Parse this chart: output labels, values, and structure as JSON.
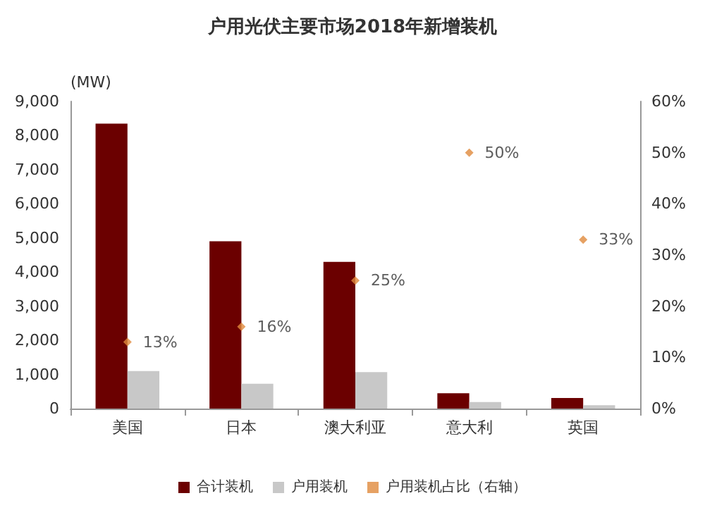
{
  "chart_data": {
    "type": "bar",
    "title": "户用光伏主要市场2018年新增装机",
    "ylabel": "(MW)",
    "categories": [
      "美国",
      "日本",
      "澳大利亚",
      "意大利",
      "英国"
    ],
    "series": [
      {
        "name": "合计装机",
        "color": "#6b0000",
        "values": [
          8350,
          4900,
          4300,
          450,
          310
        ]
      },
      {
        "name": "户用装机",
        "color": "#c8c8c8",
        "values": [
          1100,
          730,
          1070,
          190,
          100
        ]
      },
      {
        "name": "户用装机占比（右轴）",
        "type": "scatter",
        "axis": "y2",
        "color": "#e08a3c",
        "values": [
          13,
          16,
          25,
          50,
          33
        ],
        "value_labels": [
          "13%",
          "16%",
          "25%",
          "50%",
          "33%"
        ]
      }
    ],
    "marker": "diamond",
    "grid": false,
    "legend": "bottom",
    "ylim": [
      0,
      9000
    ],
    "yticks": [
      {
        "value": 0,
        "label": "0"
      },
      {
        "value": 1000,
        "label": "1,000"
      },
      {
        "value": 2000,
        "label": "2,000"
      },
      {
        "value": 3000,
        "label": "3,000"
      },
      {
        "value": 4000,
        "label": "4,000"
      },
      {
        "value": 5000,
        "label": "5,000"
      },
      {
        "value": 6000,
        "label": "6,000"
      },
      {
        "value": 7000,
        "label": "7,000"
      },
      {
        "value": 8000,
        "label": "8,000"
      },
      {
        "value": 9000,
        "label": "9,000"
      }
    ],
    "y2lim": [
      0,
      60
    ],
    "y2ticks": [
      {
        "value": 0,
        "label": "0%"
      },
      {
        "value": 10,
        "label": "10%"
      },
      {
        "value": 20,
        "label": "20%"
      },
      {
        "value": 30,
        "label": "30%"
      },
      {
        "value": 40,
        "label": "40%"
      },
      {
        "value": 50,
        "label": "50%"
      },
      {
        "value": 60,
        "label": "60%"
      }
    ]
  }
}
